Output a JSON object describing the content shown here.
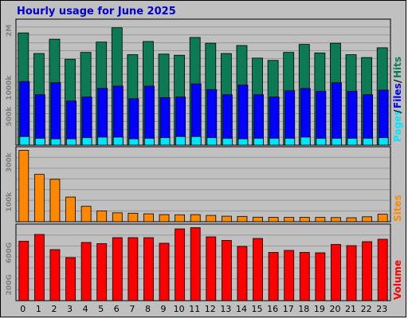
{
  "title": "Hourly usage for June 2025",
  "colors": {
    "hits": "#0b7a55",
    "files": "#0000ff",
    "pages": "#00e5ff",
    "sites": "#ff8800",
    "volume": "#ff0000",
    "title": "#0000cc",
    "grid": "#999999",
    "panel_bg": "#c0c0c0"
  },
  "chart_data": [
    {
      "type": "bar",
      "panel": "hits-files-pages",
      "categories": [
        "0",
        "1",
        "2",
        "3",
        "4",
        "5",
        "6",
        "7",
        "8",
        "9",
        "10",
        "11",
        "12",
        "13",
        "14",
        "15",
        "16",
        "17",
        "18",
        "19",
        "20",
        "21",
        "22",
        "23"
      ],
      "ylim": [
        0,
        2200000
      ],
      "yticks": [
        {
          "label": "2M",
          "value": 2000000
        },
        {
          "label": "1000k",
          "value": 1000000
        },
        {
          "label": "500k",
          "value": 500000
        }
      ],
      "series": [
        {
          "name": "Hits",
          "values": [
            1960000,
            1600000,
            1850000,
            1500000,
            1620000,
            1800000,
            2050000,
            1580000,
            1810000,
            1590000,
            1570000,
            1880000,
            1780000,
            1600000,
            1740000,
            1520000,
            1480000,
            1620000,
            1760000,
            1610000,
            1780000,
            1580000,
            1530000,
            1700000
          ]
        },
        {
          "name": "Files",
          "values": [
            1110000,
            880000,
            1090000,
            770000,
            840000,
            990000,
            1030000,
            810000,
            1030000,
            830000,
            840000,
            1070000,
            970000,
            880000,
            1050000,
            880000,
            840000,
            950000,
            990000,
            940000,
            1090000,
            940000,
            880000,
            960000
          ]
        },
        {
          "name": "Pages",
          "values": [
            150000,
            120000,
            110000,
            110000,
            130000,
            140000,
            140000,
            110000,
            120000,
            130000,
            150000,
            150000,
            130000,
            120000,
            110000,
            120000,
            120000,
            120000,
            140000,
            120000,
            120000,
            120000,
            120000,
            130000
          ]
        }
      ],
      "legend": [
        "Pages",
        "Files",
        "Hits"
      ]
    },
    {
      "type": "bar",
      "panel": "sites",
      "categories": [
        "0",
        "1",
        "2",
        "3",
        "4",
        "5",
        "6",
        "7",
        "8",
        "9",
        "10",
        "11",
        "12",
        "13",
        "14",
        "15",
        "16",
        "17",
        "18",
        "19",
        "20",
        "21",
        "22",
        "23"
      ],
      "ylim": [
        0,
        380000
      ],
      "yticks": [
        {
          "label": "300k",
          "value": 300000
        },
        {
          "label": "100k",
          "value": 100000
        }
      ],
      "series": [
        {
          "name": "Sites",
          "values": [
            362000,
            240000,
            215000,
            125000,
            78000,
            55000,
            45000,
            43000,
            40000,
            36000,
            35000,
            36000,
            32000,
            28000,
            27000,
            23000,
            22000,
            22000,
            22000,
            22000,
            21000,
            20000,
            25000,
            38000
          ]
        }
      ],
      "legend": [
        "Sites"
      ]
    },
    {
      "type": "bar",
      "panel": "volume",
      "categories": [
        "0",
        "1",
        "2",
        "3",
        "4",
        "5",
        "6",
        "7",
        "8",
        "9",
        "10",
        "11",
        "12",
        "13",
        "14",
        "15",
        "16",
        "17",
        "18",
        "19",
        "20",
        "21",
        "22",
        "23"
      ],
      "ylim": [
        0,
        960
      ],
      "yticks": [
        {
          "label": "600G",
          "value": 600
        },
        {
          "label": "200G",
          "value": 200
        }
      ],
      "series": [
        {
          "name": "Volume",
          "values": [
            745,
            830,
            640,
            540,
            730,
            715,
            790,
            790,
            790,
            720,
            900,
            915,
            800,
            755,
            680,
            780,
            605,
            630,
            605,
            600,
            705,
            690,
            740,
            770
          ]
        }
      ],
      "legend": [
        "Volume"
      ]
    }
  ]
}
